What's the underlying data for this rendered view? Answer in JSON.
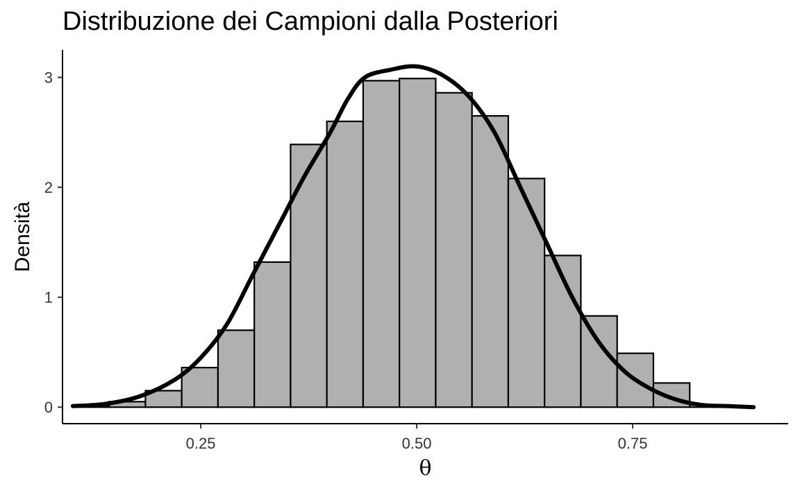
{
  "chart_data": {
    "type": "bar",
    "title": "Distribuzione dei Campioni dalla Posteriori",
    "xlabel": "θ",
    "ylabel": "Densità",
    "xlim": [
      0.09,
      0.93
    ],
    "ylim": [
      -0.15,
      3.25
    ],
    "x_ticks": [
      0.25,
      0.5,
      0.75
    ],
    "x_tick_labels": [
      "0.25",
      "0.50",
      "0.75"
    ],
    "y_ticks": [
      0,
      1,
      2,
      3
    ],
    "y_tick_labels": [
      "0",
      "1",
      "2",
      "3"
    ],
    "grid": false,
    "histogram": {
      "bin_width": 0.042,
      "bins": [
        {
          "x_start": 0.102,
          "x_end": 0.144,
          "value": 0.01
        },
        {
          "x_start": 0.144,
          "x_end": 0.186,
          "value": 0.05
        },
        {
          "x_start": 0.186,
          "x_end": 0.228,
          "value": 0.15
        },
        {
          "x_start": 0.228,
          "x_end": 0.27,
          "value": 0.36
        },
        {
          "x_start": 0.27,
          "x_end": 0.312,
          "value": 0.7
        },
        {
          "x_start": 0.312,
          "x_end": 0.354,
          "value": 1.32
        },
        {
          "x_start": 0.354,
          "x_end": 0.396,
          "value": 2.39
        },
        {
          "x_start": 0.396,
          "x_end": 0.438,
          "value": 2.6
        },
        {
          "x_start": 0.438,
          "x_end": 0.48,
          "value": 2.97
        },
        {
          "x_start": 0.48,
          "x_end": 0.522,
          "value": 2.99
        },
        {
          "x_start": 0.522,
          "x_end": 0.564,
          "value": 2.86
        },
        {
          "x_start": 0.564,
          "x_end": 0.606,
          "value": 2.65
        },
        {
          "x_start": 0.606,
          "x_end": 0.648,
          "value": 2.08
        },
        {
          "x_start": 0.648,
          "x_end": 0.69,
          "value": 1.38
        },
        {
          "x_start": 0.69,
          "x_end": 0.732,
          "value": 0.83
        },
        {
          "x_start": 0.732,
          "x_end": 0.774,
          "value": 0.49
        },
        {
          "x_start": 0.774,
          "x_end": 0.816,
          "value": 0.22
        },
        {
          "x_start": 0.816,
          "x_end": 0.858,
          "value": 0.02
        },
        {
          "x_start": 0.858,
          "x_end": 0.9,
          "value": 0.0
        },
        {
          "x_start": 0.9,
          "x_end": 0.942,
          "value": 0.0
        }
      ],
      "fill": "#b0b0b0",
      "stroke": "#000000"
    },
    "density_curve": {
      "x": [
        0.102,
        0.14,
        0.18,
        0.22,
        0.25,
        0.28,
        0.31,
        0.34,
        0.37,
        0.4,
        0.42,
        0.44,
        0.47,
        0.5,
        0.53,
        0.56,
        0.59,
        0.62,
        0.65,
        0.68,
        0.71,
        0.74,
        0.77,
        0.8,
        0.83,
        0.86,
        0.89
      ],
      "y": [
        0.01,
        0.03,
        0.1,
        0.25,
        0.45,
        0.75,
        1.2,
        1.65,
        2.1,
        2.5,
        2.8,
        3.0,
        3.07,
        3.1,
        3.02,
        2.83,
        2.5,
        2.0,
        1.5,
        1.0,
        0.6,
        0.33,
        0.17,
        0.07,
        0.02,
        0.01,
        0.0
      ],
      "color": "#000000"
    }
  }
}
